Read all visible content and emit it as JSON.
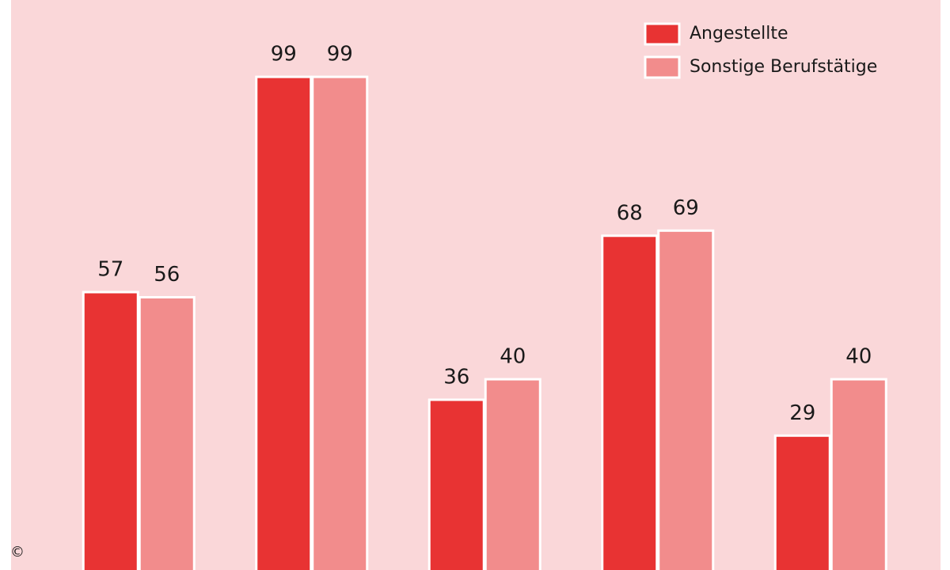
{
  "chart_data": {
    "type": "bar",
    "categories": [
      null,
      null,
      null,
      null,
      null
    ],
    "series": [
      {
        "name": "Angestellte",
        "color": "#e83333",
        "values": [
          57,
          99,
          36,
          68,
          29
        ]
      },
      {
        "name": "Sonstige Berufstätige",
        "color": "#f28c8c",
        "values": [
          56,
          99,
          40,
          69,
          40
        ]
      }
    ],
    "ylim": [
      0,
      114
    ],
    "legend": "upper right",
    "copyright": "©"
  }
}
